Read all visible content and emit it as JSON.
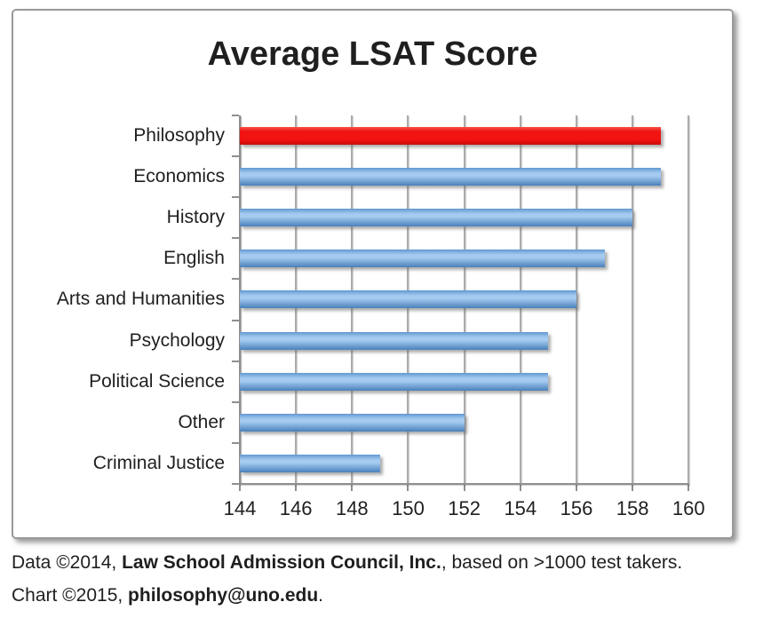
{
  "title": "Average LSAT Score",
  "chart_data": {
    "type": "bar",
    "orientation": "horizontal",
    "title": "Average LSAT Score",
    "categories": [
      "Philosophy",
      "Economics",
      "History",
      "English",
      "Arts and Humanities",
      "Psychology",
      "Political Science",
      "Other",
      "Criminal Justice"
    ],
    "values": [
      159,
      159,
      158,
      157,
      156,
      155,
      155,
      152,
      149
    ],
    "highlight_index": 0,
    "xlabel": "",
    "ylabel": "",
    "xlim": [
      144,
      160
    ],
    "x_ticks": [
      "144",
      "146",
      "148",
      "150",
      "152",
      "154",
      "156",
      "158",
      "160"
    ],
    "grid": true,
    "legend": false
  },
  "footer": {
    "line1": [
      {
        "text": "Data ©2014, ",
        "bold": false
      },
      {
        "text": "Law School Admission Council, Inc.",
        "bold": true
      },
      {
        "text": ", based on >1000 test takers.",
        "bold": false
      }
    ],
    "line2": [
      {
        "text": "Chart ©2015, ",
        "bold": false
      },
      {
        "text": "philosophy@uno.edu",
        "bold": true
      },
      {
        "text": ".",
        "bold": false
      }
    ]
  },
  "colors": {
    "highlight_bar": "#f11212",
    "default_bar": "#6fa2d8",
    "bar_blue_top": "#6298d0",
    "bar_blue_light": "#a5cbf0",
    "bar_blue_bottom": "#4a80bb",
    "bar_red_top": "#f6564b",
    "bar_red_main": "#f11212",
    "bar_red_bottom": "#c90b0b",
    "gridline": "#ababab",
    "axis": "#8f8f8f",
    "text": "#1f1f1f",
    "box_border": "#9a9a9a"
  }
}
